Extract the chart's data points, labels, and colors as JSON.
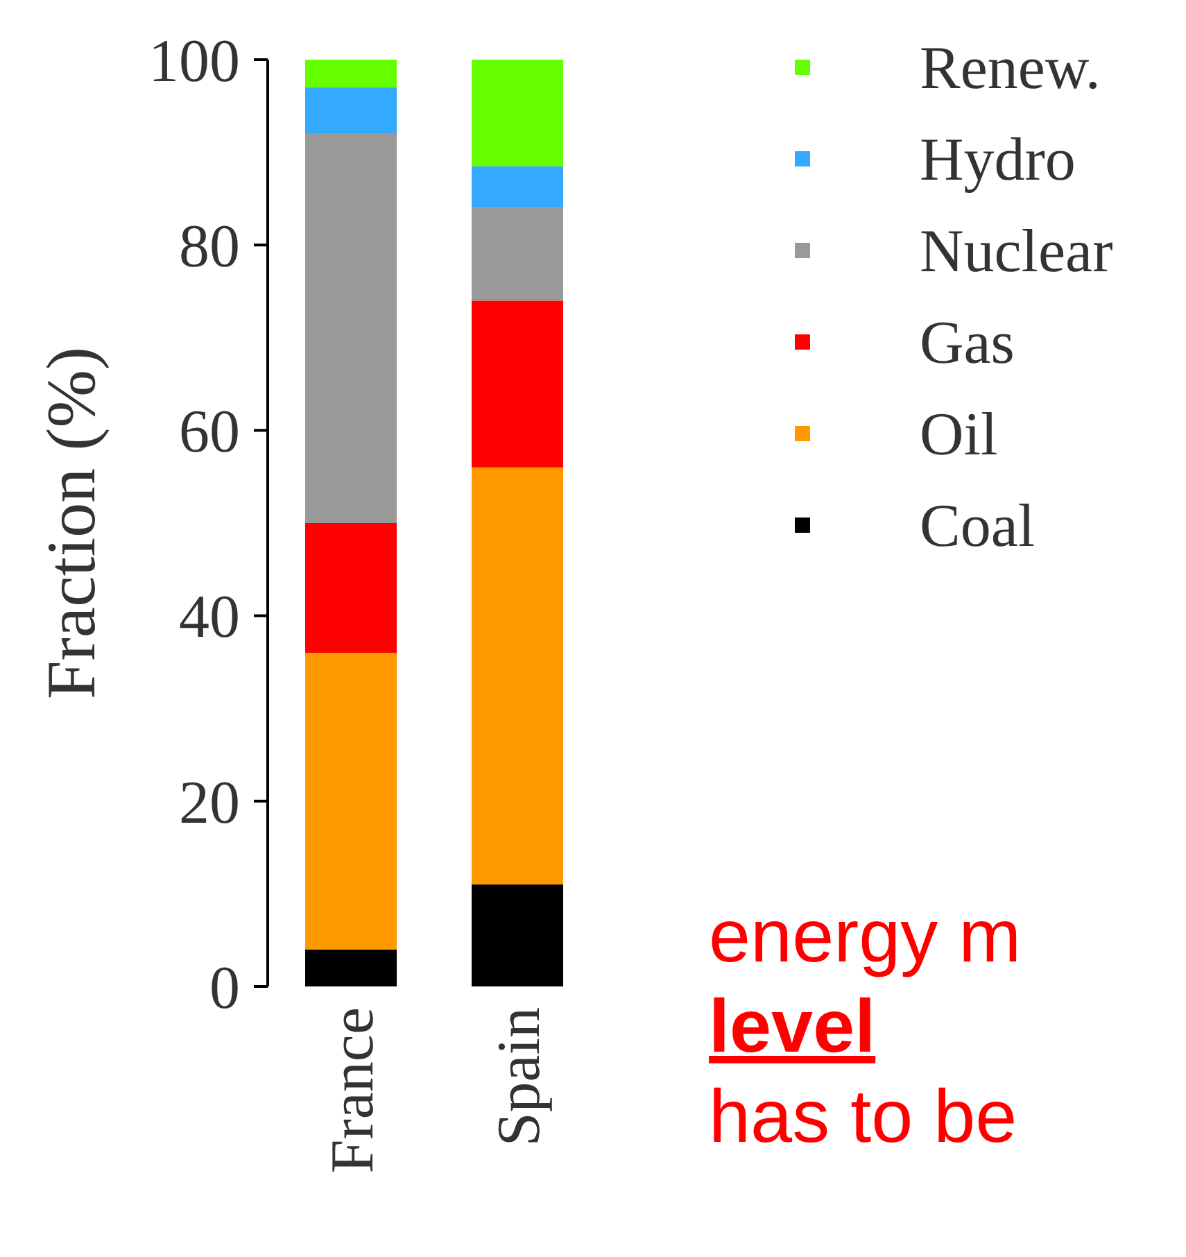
{
  "chart_data": {
    "type": "bar",
    "stacked": true,
    "ylabel": "Fraction (%)",
    "categories": [
      "France",
      "Spain"
    ],
    "series": [
      {
        "name": "Coal",
        "color": "#000000",
        "values": [
          4,
          11
        ]
      },
      {
        "name": "Oil",
        "color": "#ff9900",
        "values": [
          32,
          45
        ]
      },
      {
        "name": "Gas",
        "color": "#ff0000",
        "values": [
          14,
          18
        ]
      },
      {
        "name": "Nuclear",
        "color": "#999999",
        "values": [
          42,
          10
        ]
      },
      {
        "name": "Hydro",
        "color": "#33aaff",
        "values": [
          5,
          4.5
        ]
      },
      {
        "name": "Renew.",
        "color": "#66ff00",
        "values": [
          3,
          11.5
        ]
      }
    ],
    "ylim": [
      0,
      100
    ],
    "yticks": [
      0,
      20,
      40,
      60,
      80,
      100
    ],
    "grid": false,
    "legend": "top right",
    "annotations": [
      "energy m",
      "level",
      "has to be"
    ]
  }
}
